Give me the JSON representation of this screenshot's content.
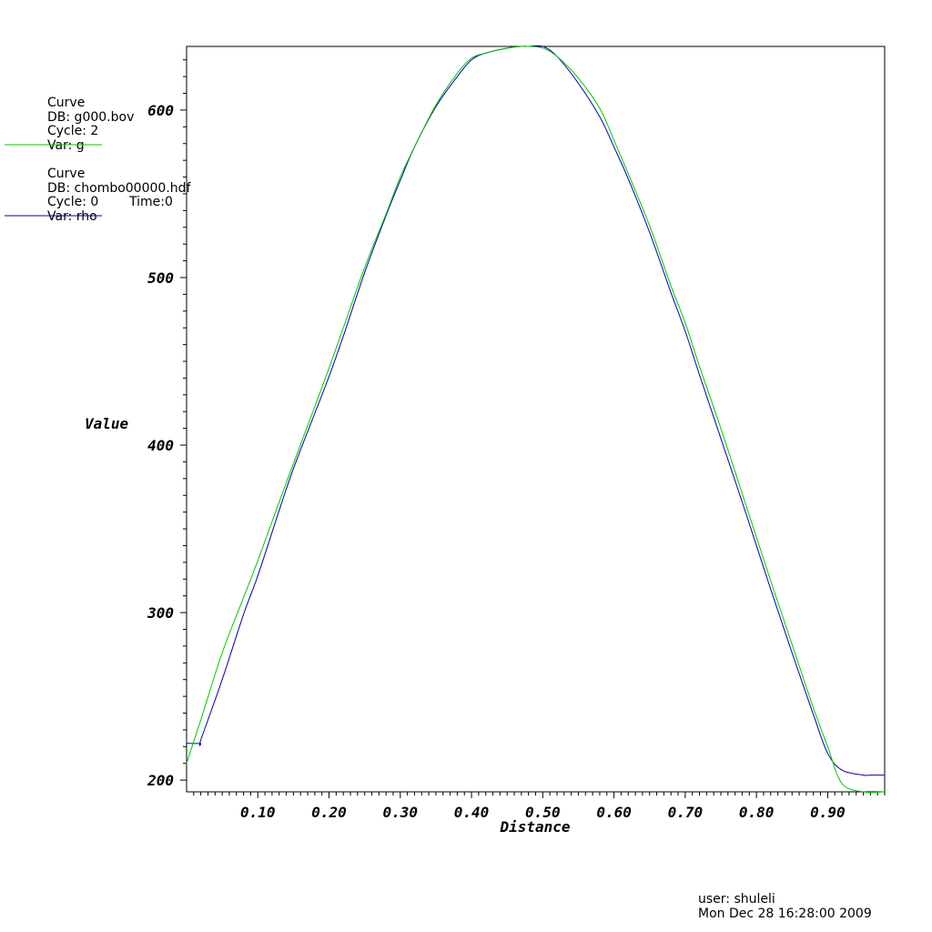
{
  "legend": {
    "entries": [
      {
        "lines": [
          "Curve",
          "DB: g000.bov",
          "Cycle: 2",
          "Var: g"
        ],
        "time": "",
        "color": "#00c800"
      },
      {
        "lines": [
          "Curve",
          "DB: chombo00000.hdf",
          "Cycle: 0",
          "Var: rho"
        ],
        "time": "Time:0",
        "color": "#0000b4"
      }
    ]
  },
  "footer": {
    "user": "user: shuleli",
    "date": "Mon Dec 28 16:28:00 2009"
  },
  "chart_data": {
    "type": "line",
    "xlabel": "Distance",
    "ylabel": "Value",
    "xlim": [
      0.0,
      0.98
    ],
    "ylim": [
      193,
      638
    ],
    "x_ticks": [
      0.1,
      0.2,
      0.3,
      0.4,
      0.5,
      0.6,
      0.7,
      0.8,
      0.9
    ],
    "x_tick_labels": [
      "0.10",
      "0.20",
      "0.30",
      "0.40",
      "0.50",
      "0.60",
      "0.70",
      "0.80",
      "0.90"
    ],
    "y_ticks": [
      200,
      300,
      400,
      500,
      600
    ],
    "y_tick_labels": [
      "200",
      "300",
      "400",
      "500",
      "600"
    ],
    "grid": false,
    "legend_position": "top-left",
    "series": [
      {
        "name": "g",
        "color": "#00c800",
        "x": [
          0.0,
          0.02,
          0.05,
          0.08,
          0.1,
          0.13,
          0.15,
          0.18,
          0.2,
          0.22,
          0.25,
          0.28,
          0.3,
          0.32,
          0.35,
          0.38,
          0.4,
          0.42,
          0.45,
          0.47,
          0.48,
          0.5,
          0.52,
          0.55,
          0.58,
          0.6,
          0.62,
          0.65,
          0.68,
          0.7,
          0.72,
          0.75,
          0.78,
          0.8,
          0.82,
          0.85,
          0.88,
          0.9,
          0.92,
          0.95,
          0.98
        ],
        "y": [
          210,
          236,
          276,
          309,
          331,
          366,
          389,
          423,
          446,
          470,
          506,
          538,
          560,
          578,
          603,
          622,
          631,
          634,
          637,
          638,
          638,
          637,
          632,
          619,
          601,
          582,
          562,
          531,
          495,
          473,
          447,
          410,
          371,
          345,
          319,
          281,
          243,
          220,
          198,
          193,
          193
        ]
      },
      {
        "name": "rho",
        "color": "#0000b4",
        "x": [
          0.0,
          0.019,
          0.02,
          0.05,
          0.08,
          0.1,
          0.13,
          0.15,
          0.18,
          0.2,
          0.22,
          0.25,
          0.28,
          0.3,
          0.32,
          0.35,
          0.38,
          0.4,
          0.42,
          0.45,
          0.47,
          0.48,
          0.5,
          0.52,
          0.55,
          0.58,
          0.6,
          0.62,
          0.65,
          0.68,
          0.7,
          0.72,
          0.75,
          0.78,
          0.8,
          0.82,
          0.85,
          0.88,
          0.9,
          0.92,
          0.95,
          0.96,
          0.98
        ],
        "y": [
          222,
          222,
          224,
          260,
          299,
          322,
          361,
          386,
          419,
          441,
          465,
          503,
          537,
          558,
          578,
          602,
          620,
          630,
          634,
          637,
          638,
          638,
          638,
          632,
          616,
          596,
          578,
          559,
          527,
          491,
          468,
          442,
          404,
          366,
          340,
          314,
          276,
          239,
          216,
          206,
          203,
          203,
          203
        ]
      }
    ]
  }
}
